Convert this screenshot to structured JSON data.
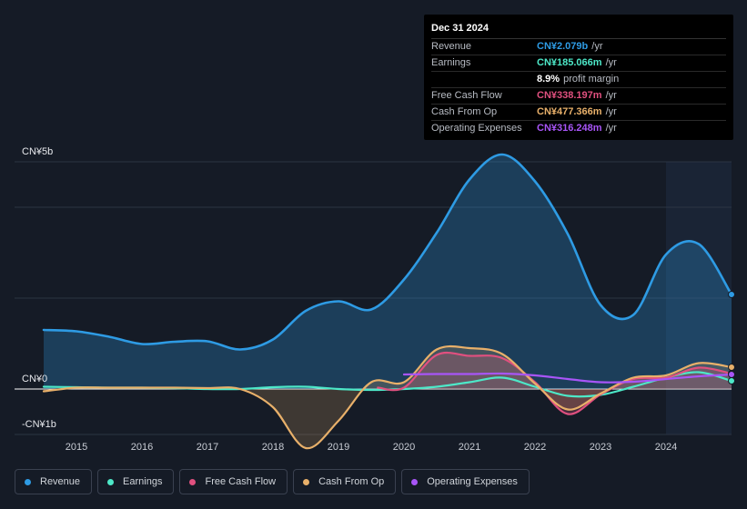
{
  "tooltip": {
    "date": "Dec 31 2024",
    "rows": [
      {
        "label": "Revenue",
        "value": "CN¥2.079b",
        "unit": "/yr",
        "color": "#2e9be4"
      },
      {
        "label": "Earnings",
        "value": "CN¥185.066m",
        "unit": "/yr",
        "color": "#4de8c8"
      },
      {
        "label": "",
        "value": "8.9%",
        "unit": "profit margin",
        "color": "#ffffff"
      },
      {
        "label": "Free Cash Flow",
        "value": "CN¥338.197m",
        "unit": "/yr",
        "color": "#e0507f"
      },
      {
        "label": "Cash From Op",
        "value": "CN¥477.366m",
        "unit": "/yr",
        "color": "#e8b06a"
      },
      {
        "label": "Operating Expenses",
        "value": "CN¥316.248m",
        "unit": "/yr",
        "color": "#a855f7"
      }
    ]
  },
  "legend": [
    {
      "label": "Revenue",
      "color": "#2e9be4"
    },
    {
      "label": "Earnings",
      "color": "#4de8c8"
    },
    {
      "label": "Free Cash Flow",
      "color": "#e0507f"
    },
    {
      "label": "Cash From Op",
      "color": "#e8b06a"
    },
    {
      "label": "Operating Expenses",
      "color": "#a855f7"
    }
  ],
  "chart_data": {
    "type": "area",
    "title": "",
    "xlabel": "",
    "ylabel": "",
    "unit": "CN¥ billions",
    "xlim": [
      2014.5,
      2025.0
    ],
    "ylim": [
      -1.0,
      5.0
    ],
    "y_tick_labels": [
      {
        "value": 5,
        "label": "CN¥5b"
      },
      {
        "value": 0,
        "label": "CN¥0"
      },
      {
        "value": -1,
        "label": "-CN¥1b"
      }
    ],
    "x_ticks": [
      2015,
      2016,
      2017,
      2018,
      2019,
      2020,
      2021,
      2022,
      2023,
      2024
    ],
    "x_tick_labels": [
      "2015",
      "2016",
      "2017",
      "2018",
      "2019",
      "2020",
      "2021",
      "2022",
      "2023",
      "2024"
    ],
    "highlight_from": 2024.0,
    "series": [
      {
        "name": "Revenue",
        "color": "#2e9be4",
        "fill": true,
        "x": [
          2014.5,
          2015.0,
          2015.5,
          2016.0,
          2016.5,
          2017.0,
          2017.5,
          2018.0,
          2018.5,
          2019.0,
          2019.5,
          2020.0,
          2020.5,
          2021.0,
          2021.5,
          2022.0,
          2022.5,
          2023.0,
          2023.5,
          2024.0,
          2024.5,
          2025.0
        ],
        "values": [
          1.3,
          1.27,
          1.15,
          0.99,
          1.04,
          1.05,
          0.87,
          1.09,
          1.72,
          1.93,
          1.75,
          2.41,
          3.44,
          4.61,
          5.16,
          4.57,
          3.41,
          1.85,
          1.63,
          2.96,
          3.19,
          2.08
        ]
      },
      {
        "name": "Earnings",
        "color": "#4de8c8",
        "fill": false,
        "x": [
          2014.5,
          2015.0,
          2015.5,
          2016.0,
          2016.5,
          2017.0,
          2017.5,
          2018.0,
          2018.5,
          2019.0,
          2019.5,
          2020.0,
          2020.5,
          2021.0,
          2021.5,
          2022.0,
          2022.5,
          2023.0,
          2023.5,
          2024.0,
          2024.5,
          2025.0
        ],
        "values": [
          0.05,
          0.04,
          0.03,
          0.03,
          0.02,
          0.0,
          0.0,
          0.04,
          0.05,
          0.0,
          -0.02,
          0.0,
          0.05,
          0.15,
          0.25,
          0.05,
          -0.15,
          -0.13,
          0.05,
          0.25,
          0.37,
          0.18
        ]
      },
      {
        "name": "Free Cash Flow",
        "color": "#e0507f",
        "fill": true,
        "x": [
          2019.6,
          2020.0,
          2020.5,
          2021.0,
          2021.5,
          2022.0,
          2022.5,
          2023.0,
          2023.5,
          2024.0,
          2024.5,
          2025.0
        ],
        "values": [
          0.03,
          0.03,
          0.75,
          0.73,
          0.68,
          0.15,
          -0.55,
          -0.12,
          0.22,
          0.25,
          0.47,
          0.34
        ]
      },
      {
        "name": "Cash From Op",
        "color": "#e8b06a",
        "fill": true,
        "x": [
          2014.5,
          2015.0,
          2015.5,
          2016.0,
          2016.5,
          2017.0,
          2017.5,
          2018.0,
          2018.5,
          2019.0,
          2019.5,
          2020.0,
          2020.5,
          2021.0,
          2021.5,
          2022.0,
          2022.5,
          2023.0,
          2023.5,
          2024.0,
          2024.5,
          2025.0
        ],
        "values": [
          -0.05,
          0.03,
          0.03,
          0.03,
          0.03,
          0.02,
          0.0,
          -0.4,
          -1.3,
          -0.7,
          0.15,
          0.15,
          0.87,
          0.9,
          0.77,
          0.12,
          -0.45,
          -0.1,
          0.25,
          0.3,
          0.57,
          0.48
        ]
      },
      {
        "name": "Operating Expenses",
        "color": "#a855f7",
        "fill": false,
        "x": [
          2020.0,
          2020.5,
          2021.0,
          2021.5,
          2022.0,
          2022.5,
          2023.0,
          2023.5,
          2024.0,
          2024.5,
          2025.0
        ],
        "values": [
          0.32,
          0.33,
          0.33,
          0.34,
          0.3,
          0.22,
          0.15,
          0.16,
          0.22,
          0.28,
          0.32
        ]
      }
    ]
  }
}
